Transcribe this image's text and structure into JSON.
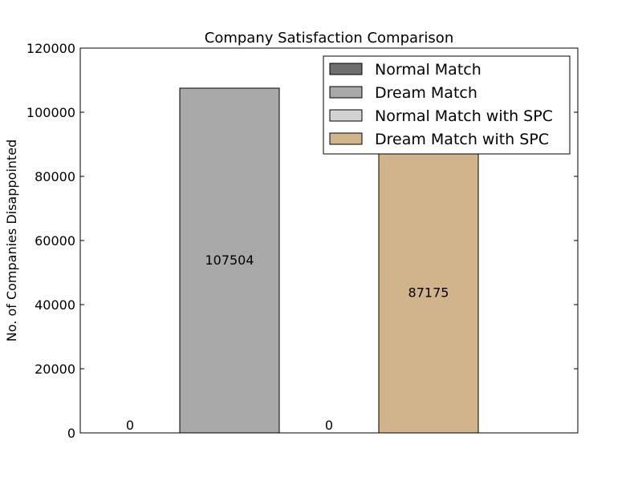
{
  "chart_data": {
    "type": "bar",
    "title": "Company Satisfaction Comparison",
    "xlabel": "",
    "ylabel": "No. of Companies Disappointed",
    "ylim": [
      0,
      120000
    ],
    "yticks": [
      0,
      20000,
      40000,
      60000,
      80000,
      100000,
      120000
    ],
    "grid": false,
    "legend_position": "top-right",
    "series": [
      {
        "name": "Normal Match",
        "color": "#6e6e6e",
        "value": 0,
        "value_label": "0"
      },
      {
        "name": "Dream Match",
        "color": "#a9a9a9",
        "value": 107504,
        "value_label": "107504"
      },
      {
        "name": "Normal Match with SPC",
        "color": "#d3d3d3",
        "value": 0,
        "value_label": "0"
      },
      {
        "name": "Dream Match with SPC",
        "color": "#d2b48c",
        "value": 87175,
        "value_label": "87175"
      }
    ]
  }
}
